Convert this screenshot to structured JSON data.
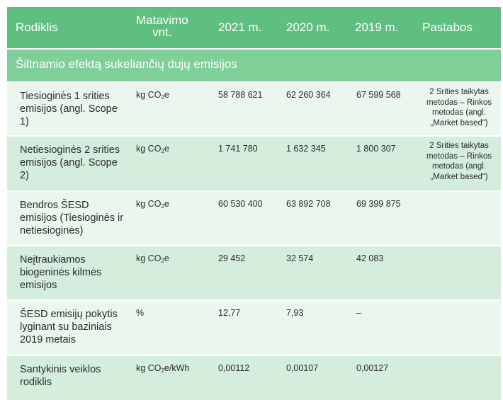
{
  "header": {
    "col_indicator": "Rodiklis",
    "col_unit_line1": "Matavimo",
    "col_unit_line2": "vnt.",
    "col_2021": "2021 m.",
    "col_2020": "2020 m.",
    "col_2019": "2019 m.",
    "col_notes": "Pastabos"
  },
  "section_title": "Šiltnamio efektą sukeliančių dujų emisijos",
  "rows": [
    {
      "indicator": "Tiesioginės 1 srities emisijos (angl. Scope 1)",
      "unit": {
        "pre": "kg CO",
        "sub": "2",
        "post": "e"
      },
      "v2021": "58 788 621",
      "v2020": "62 260 364",
      "v2019": "67 599 568",
      "notes": "2 Srities taikytas metodas – Rinkos metodas (angl. „Market based“)"
    },
    {
      "indicator": "Netiesioginės 2 srities emisijos (angl. Scope 2)",
      "unit": {
        "pre": "kg CO",
        "sub": "2",
        "post": "e"
      },
      "v2021": "1 741 780",
      "v2020": "1 632 345",
      "v2019": "1 800 307",
      "notes": "2 Srities taikytas metodas – Rinkos metodas (angl. „Market based“)"
    },
    {
      "indicator": "Bendros ŠESD emisijos (Tiesioginės ir netiesioginės)",
      "unit": {
        "pre": "kg CO",
        "sub": "2",
        "post": "e"
      },
      "v2021": "60 530 400",
      "v2020": "63 892 708",
      "v2019": "69 399 875",
      "notes": ""
    },
    {
      "indicator": "Neįtraukiamos biogeninės kilmės emisijos",
      "unit": {
        "pre": "kg CO",
        "sub": "2",
        "post": "e"
      },
      "v2021": "29 452",
      "v2020": "32 574",
      "v2019": "42 083",
      "notes": ""
    },
    {
      "indicator": "ŠESD emisijų pokytis lyginant su baziniais 2019 metais",
      "unit": {
        "pre": "%",
        "sub": "",
        "post": ""
      },
      "v2021": "12,77",
      "v2020": "7,93",
      "v2019": "–",
      "notes": ""
    },
    {
      "indicator": "Santykinis veiklos rodiklis",
      "unit": {
        "pre": "kg CO",
        "sub": "2",
        "post": "e/kWh"
      },
      "v2021": "0,00112",
      "v2020": "0,00107",
      "v2019": "0,00127",
      "notes": ""
    }
  ],
  "colors": {
    "header_bg": "#5fbf80",
    "section_bg": "#7fcf98",
    "row_light": "#eaf6ee",
    "row_dark": "#d5eddd"
  }
}
